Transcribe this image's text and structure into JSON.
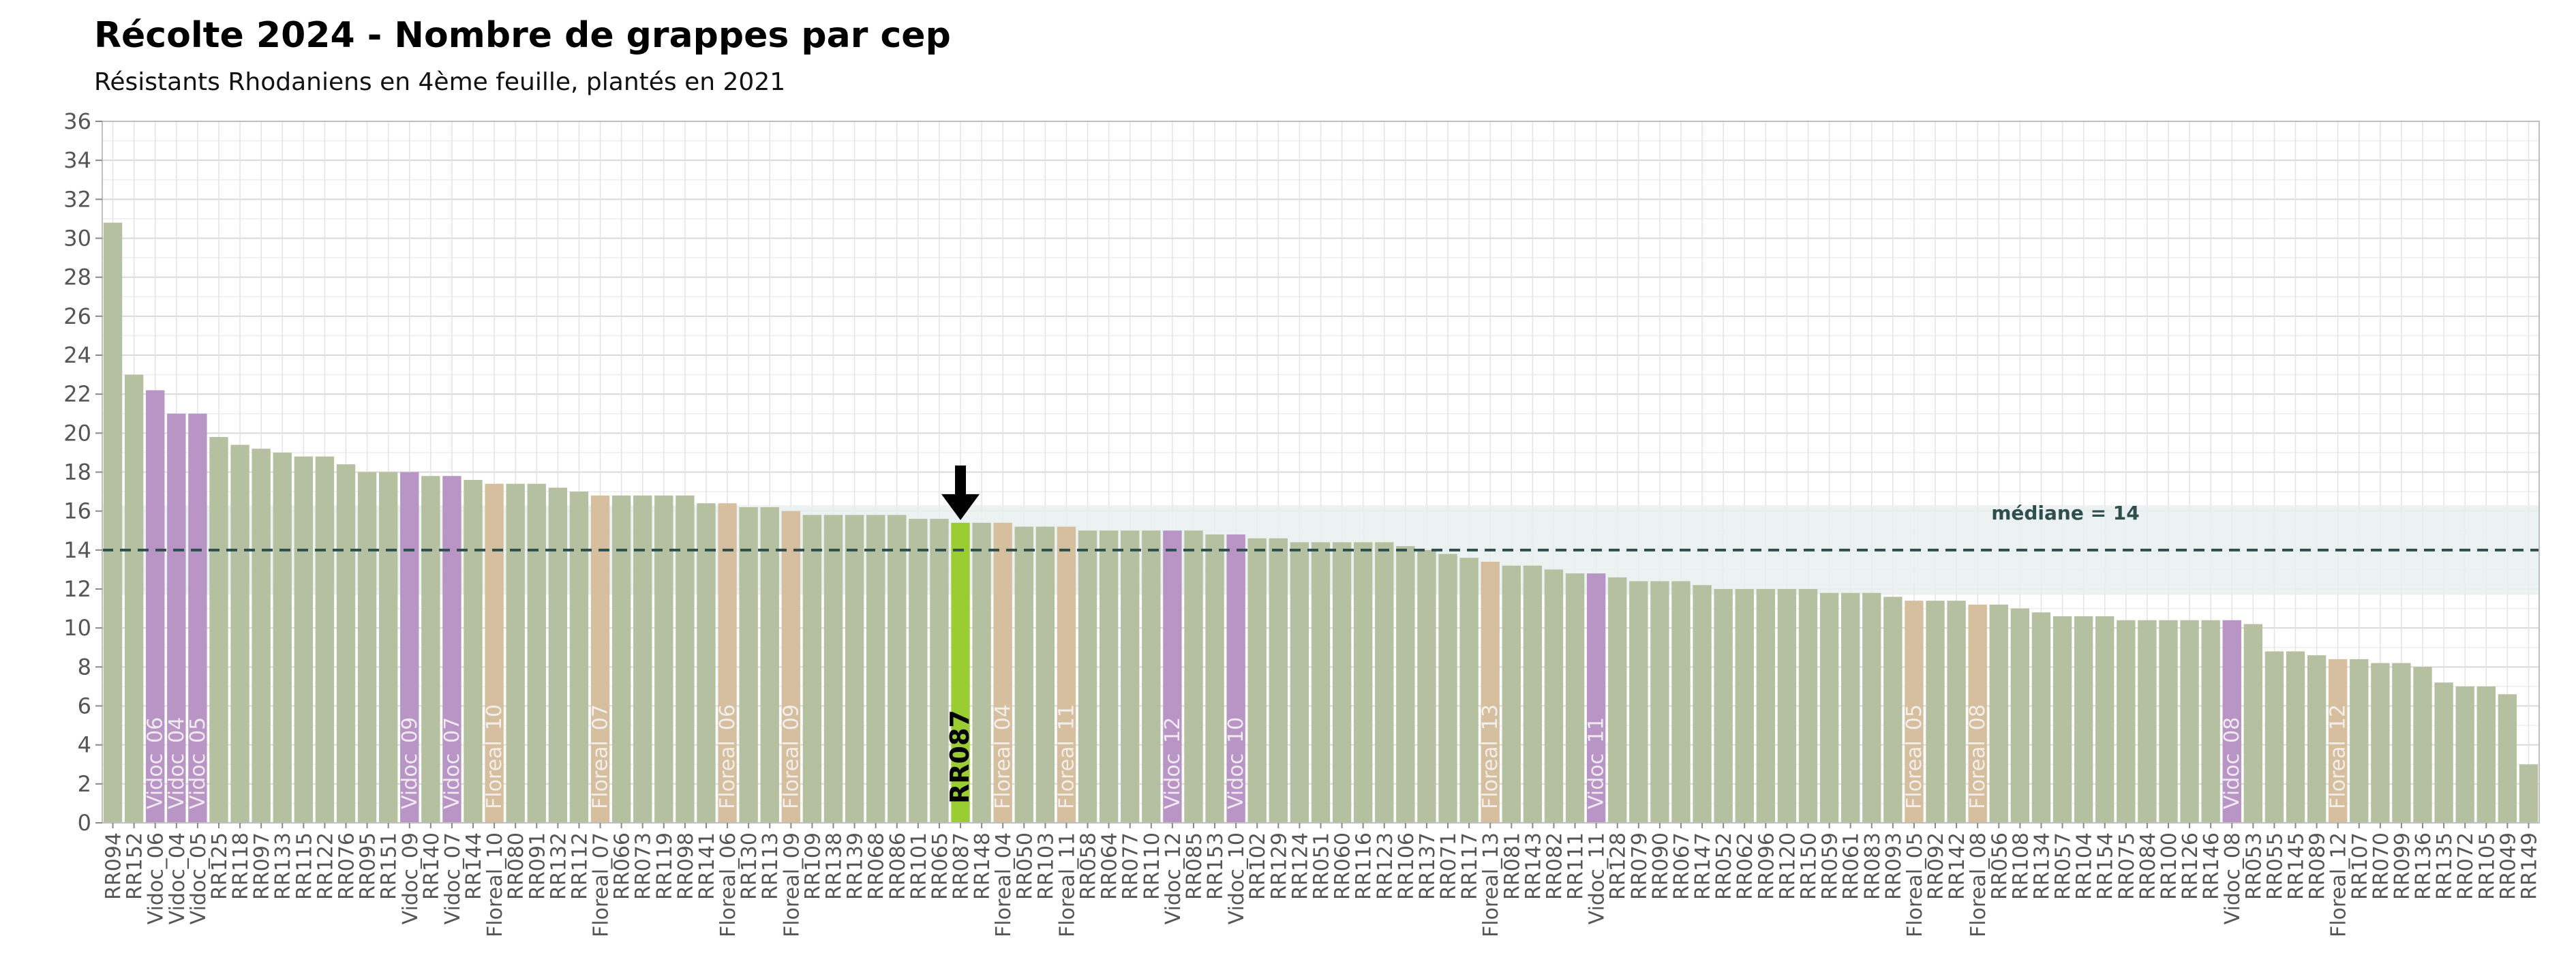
{
  "chart_data": {
    "type": "bar",
    "title": "Récolte 2024 - Nombre de grappes par cep",
    "subtitle": "Résistants Rhodaniens en 4ème feuille, plantés en 2021",
    "xlabel": "",
    "ylabel": "",
    "ylim": [
      0,
      36
    ],
    "yticks": [
      0,
      2,
      4,
      6,
      8,
      10,
      12,
      14,
      16,
      18,
      20,
      22,
      24,
      26,
      28,
      30,
      32,
      34,
      36
    ],
    "grid": true,
    "median": 14,
    "median_label": "médiane = 14",
    "highlight": "RR087",
    "highlight_label": "RR087",
    "colors": {
      "RR": "#b5c0a0",
      "Vidoc": "#b895c4",
      "Floreal": "#d6bf9e",
      "highlight": "#9acd32",
      "median_band": "#e9eeee",
      "median_line": "#2f4f4f"
    },
    "categories": [
      "RR094",
      "RR152",
      "Vidoc_06",
      "Vidoc_04",
      "Vidoc_05",
      "RR125",
      "RR118",
      "RR097",
      "RR133",
      "RR115",
      "RR122",
      "RR076",
      "RR095",
      "RR151",
      "Vidoc_09",
      "RR140",
      "Vidoc_07",
      "RR144",
      "Floreal_10",
      "RR080",
      "RR091",
      "RR132",
      "RR112",
      "Floreal_07",
      "RR066",
      "RR073",
      "RR119",
      "RR098",
      "RR141",
      "Floreal_06",
      "RR130",
      "RR113",
      "Floreal_09",
      "RR109",
      "RR138",
      "RR139",
      "RR068",
      "RR086",
      "RR101",
      "RR065",
      "RR087",
      "RR148",
      "Floreal_04",
      "RR050",
      "RR103",
      "Floreal_11",
      "RR058",
      "RR064",
      "RR077",
      "RR110",
      "Vidoc_12",
      "RR085",
      "RR153",
      "Vidoc_10",
      "RR102",
      "RR129",
      "RR124",
      "RR051",
      "RR060",
      "RR116",
      "RR123",
      "RR106",
      "RR137",
      "RR071",
      "RR117",
      "Floreal_13",
      "RR081",
      "RR143",
      "RR082",
      "RR111",
      "Vidoc_11",
      "RR128",
      "RR079",
      "RR090",
      "RR067",
      "RR147",
      "RR052",
      "RR062",
      "RR096",
      "RR120",
      "RR150",
      "RR059",
      "RR061",
      "RR083",
      "RR093",
      "Floreal_05",
      "RR092",
      "RR142",
      "Floreal_08",
      "RR056",
      "RR108",
      "RR134",
      "RR057",
      "RR104",
      "RR154",
      "RR075",
      "RR084",
      "RR100",
      "RR126",
      "RR146",
      "Vidoc_08",
      "RR053",
      "RR055",
      "RR145",
      "RR089",
      "Floreal_12",
      "RR107",
      "RR070",
      "RR099",
      "RR136",
      "RR135",
      "RR072",
      "RR105",
      "RR049",
      "RR149"
    ],
    "values": [
      30.8,
      23,
      22.2,
      21,
      21,
      19.8,
      19.4,
      19.2,
      19,
      18.8,
      18.8,
      18.4,
      18,
      18,
      18,
      17.8,
      17.8,
      17.6,
      17.4,
      17.4,
      17.4,
      17.2,
      17,
      16.8,
      16.8,
      16.8,
      16.8,
      16.8,
      16.4,
      16.4,
      16.2,
      16.2,
      16,
      15.8,
      15.8,
      15.8,
      15.8,
      15.8,
      15.6,
      15.6,
      15.4,
      15.4,
      15.4,
      15.2,
      15.2,
      15.2,
      15,
      15,
      15,
      15,
      15,
      15,
      14.8,
      14.8,
      14.6,
      14.6,
      14.4,
      14.4,
      14.4,
      14.4,
      14.4,
      14.2,
      14,
      13.8,
      13.6,
      13.4,
      13.2,
      13.2,
      13,
      12.8,
      12.8,
      12.6,
      12.4,
      12.4,
      12.4,
      12.2,
      12,
      12,
      12,
      12,
      12,
      11.8,
      11.8,
      11.8,
      11.6,
      11.4,
      11.4,
      11.4,
      11.2,
      11.2,
      11,
      10.8,
      10.6,
      10.6,
      10.6,
      10.4,
      10.4,
      10.4,
      10.4,
      10.4,
      10.4,
      10.2,
      8.8,
      8.8,
      8.6,
      8.4,
      8.4,
      8.2,
      8.2,
      8,
      7.2,
      7,
      7,
      6.6,
      3
    ]
  }
}
